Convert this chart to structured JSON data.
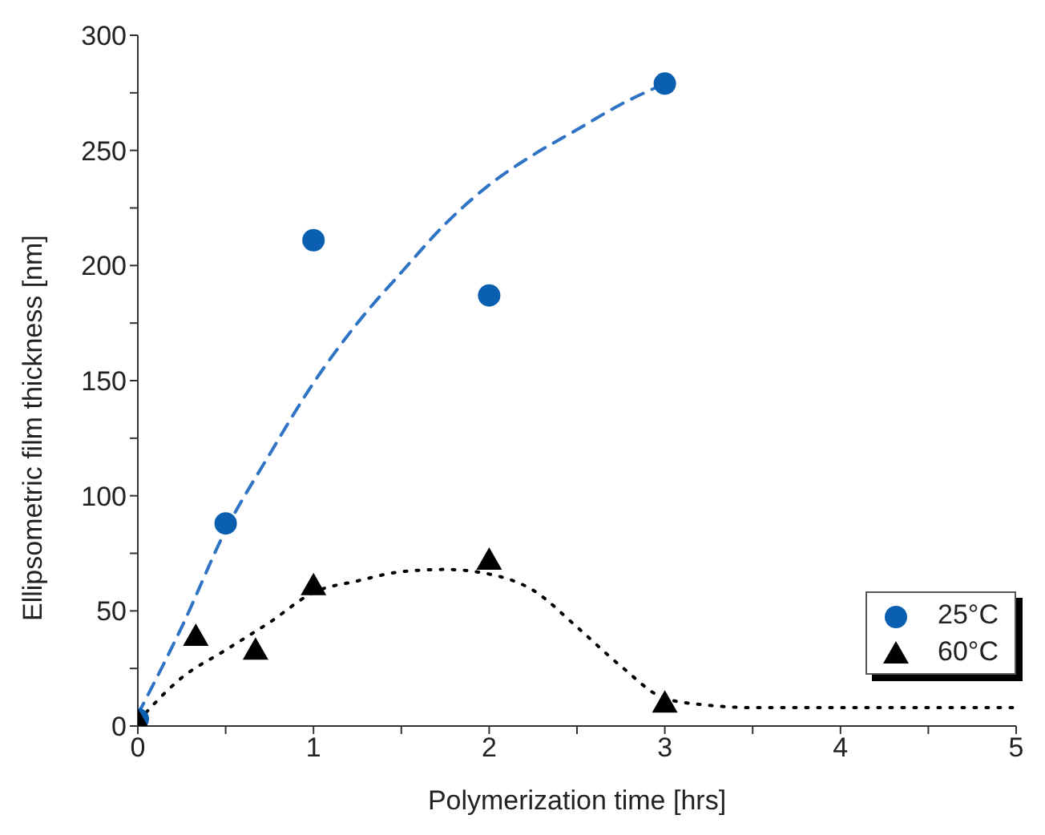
{
  "chart_data": {
    "type": "scatter",
    "xlabel": "Polymerization time [hrs]",
    "ylabel": "Ellipsometric film thickness [nm]",
    "series": [
      {
        "name": "25°C",
        "marker": "circle",
        "color": "#0b5fb0",
        "x": [
          0,
          0.5,
          1,
          2,
          3
        ],
        "values": [
          3,
          88,
          211,
          187,
          279
        ]
      },
      {
        "name": "60°C",
        "marker": "triangle",
        "color": "#000000",
        "x": [
          0,
          0.33,
          0.67,
          1,
          2,
          3
        ],
        "values": [
          2,
          39,
          33,
          61,
          72,
          10
        ]
      },
      {
        "type": "line",
        "marker": "none",
        "line_style": "dashed",
        "color": "#2e73c4",
        "x": [
          0,
          0.25,
          0.5,
          0.75,
          1,
          1.25,
          1.5,
          1.75,
          2,
          2.25,
          2.5,
          2.75,
          3
        ],
        "values": [
          5,
          43,
          85,
          118,
          149,
          175,
          197,
          218,
          235,
          248,
          259,
          270,
          279
        ]
      },
      {
        "type": "line",
        "marker": "none",
        "line_style": "dotted",
        "color": "#000000",
        "x": [
          0,
          0.25,
          0.5,
          0.75,
          1,
          1.25,
          1.5,
          1.75,
          2,
          2.25,
          2.5,
          2.75,
          3,
          3.25,
          3.5,
          4,
          4.5,
          5
        ],
        "values": [
          2,
          21,
          33,
          45,
          58,
          63,
          67,
          68,
          66,
          59,
          43,
          26,
          12,
          9,
          8,
          8,
          8,
          8
        ]
      }
    ],
    "xlim": [
      0,
      5
    ],
    "xticks": [
      0,
      {
        "value": 0.5,
        "label": null
      },
      1,
      {
        "value": 1.5,
        "label": null
      },
      2,
      {
        "value": 2.5,
        "label": null
      },
      3,
      {
        "value": 3.5,
        "label": null
      },
      4,
      {
        "value": 4.5,
        "label": null
      },
      5
    ],
    "ylim": [
      0,
      300
    ],
    "yticks": [
      0,
      {
        "value": 25,
        "label": null
      },
      50,
      {
        "value": 75,
        "label": null
      },
      100,
      {
        "value": 125,
        "label": null
      },
      150,
      {
        "value": 175,
        "label": null
      },
      200,
      {
        "value": 225,
        "label": null
      },
      250,
      {
        "value": 275,
        "label": null
      },
      300
    ],
    "grid": false,
    "legend": "bottom right"
  }
}
